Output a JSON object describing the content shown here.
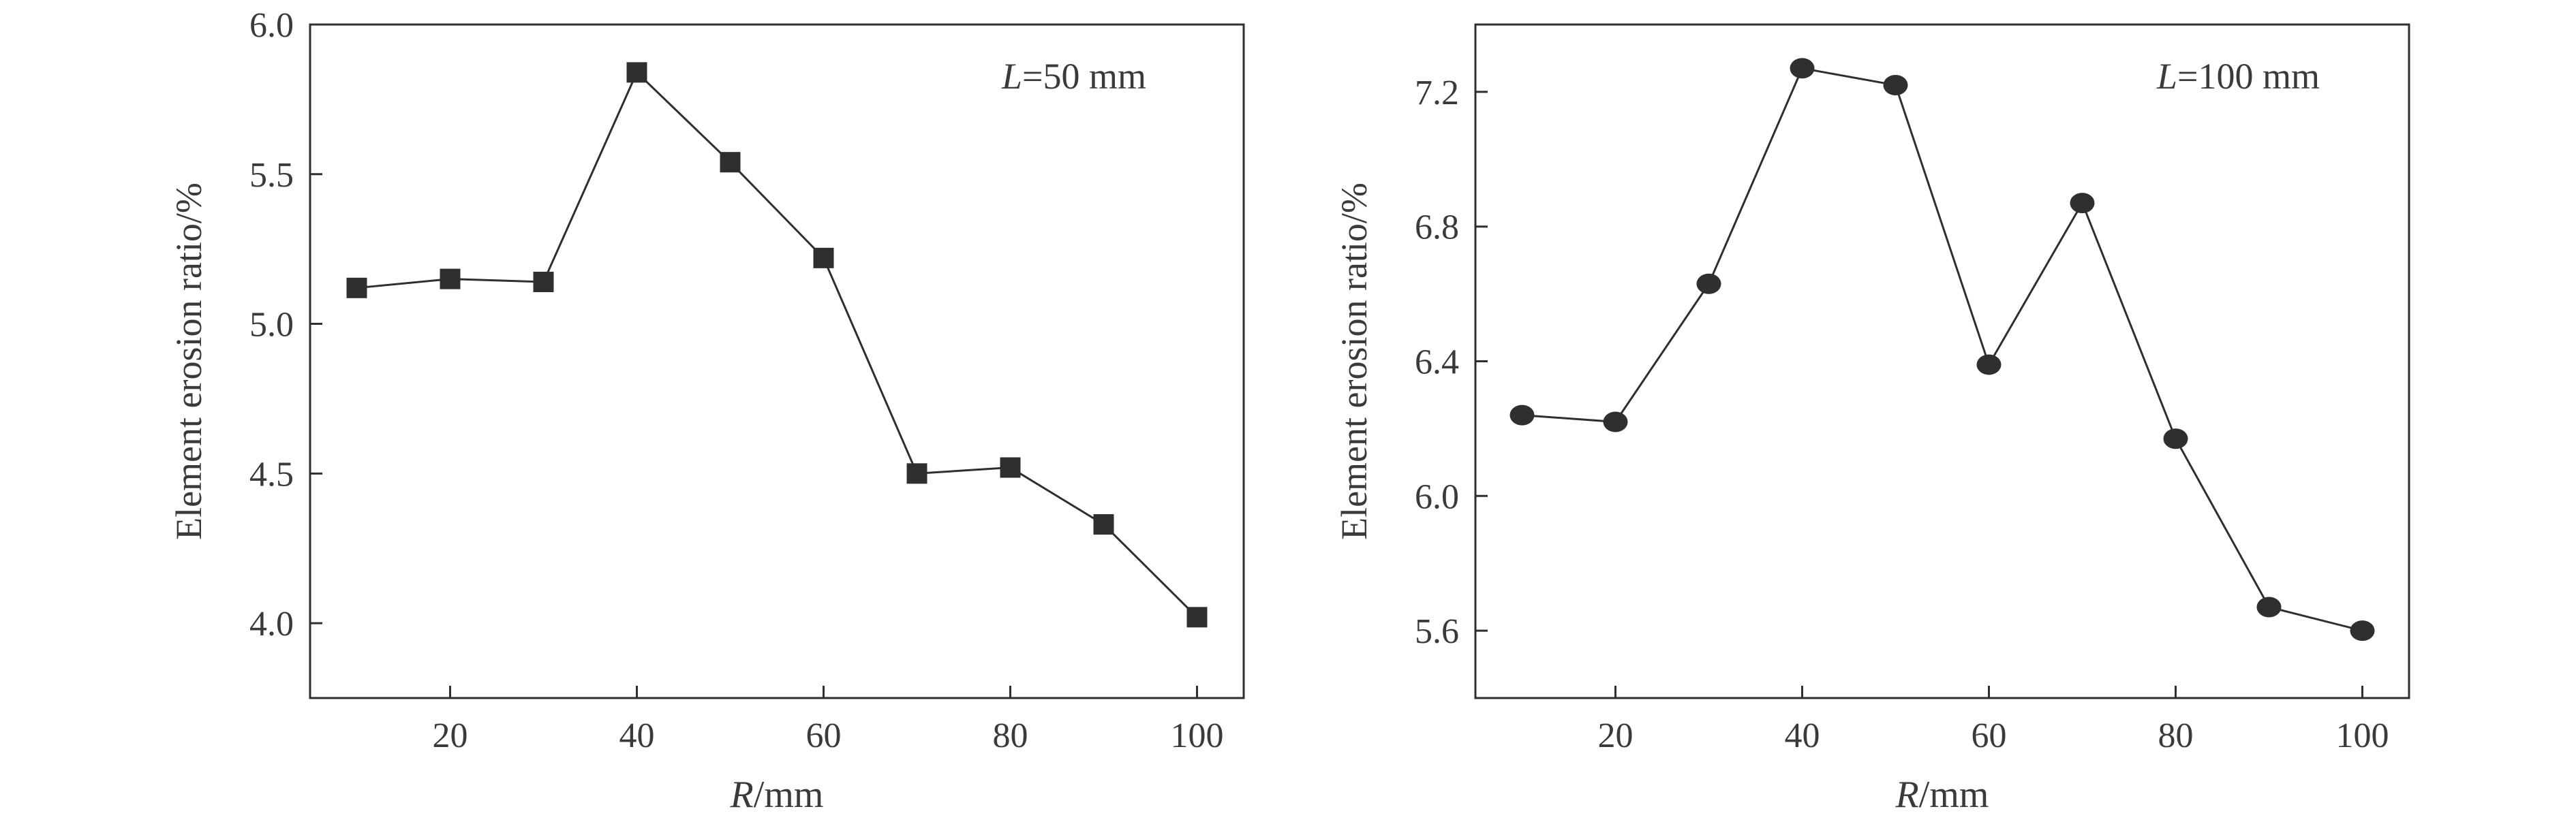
{
  "chart_data": [
    {
      "type": "line",
      "annotation": {
        "var": "L",
        "text": "=50 mm"
      },
      "xlabel": {
        "var": "R",
        "text": "/mm"
      },
      "ylabel": "Element erosion ratio/%",
      "xlim": [
        5,
        105
      ],
      "ylim": [
        3.75,
        6.0
      ],
      "xticks": [
        20,
        40,
        60,
        80,
        100
      ],
      "yticks": [
        4.0,
        4.5,
        5.0,
        5.5,
        6.0
      ],
      "ytick_labels": [
        "4.0",
        "4.5",
        "5.0",
        "5.5",
        "6.0"
      ],
      "marker": "square",
      "grid": false,
      "x": [
        10,
        20,
        30,
        40,
        50,
        60,
        70,
        80,
        90,
        100
      ],
      "y": [
        5.12,
        5.15,
        5.14,
        5.84,
        5.54,
        5.22,
        4.5,
        4.52,
        4.33,
        4.02
      ]
    },
    {
      "type": "line",
      "annotation": {
        "var": "L",
        "text": "=100 mm"
      },
      "xlabel": {
        "var": "R",
        "text": "/mm"
      },
      "ylabel": "Element erosion ratio/%",
      "xlim": [
        5,
        105
      ],
      "ylim": [
        5.4,
        7.4
      ],
      "xticks": [
        20,
        40,
        60,
        80,
        100
      ],
      "yticks": [
        5.6,
        6.0,
        6.4,
        6.8,
        7.2
      ],
      "ytick_labels": [
        "5.6",
        "6.0",
        "6.4",
        "6.8",
        "7.2"
      ],
      "marker": "circle",
      "grid": false,
      "x": [
        10,
        20,
        30,
        40,
        50,
        60,
        70,
        80,
        90,
        100
      ],
      "y": [
        6.24,
        6.22,
        6.63,
        7.27,
        7.22,
        6.39,
        6.87,
        6.17,
        5.67,
        5.6
      ]
    }
  ]
}
